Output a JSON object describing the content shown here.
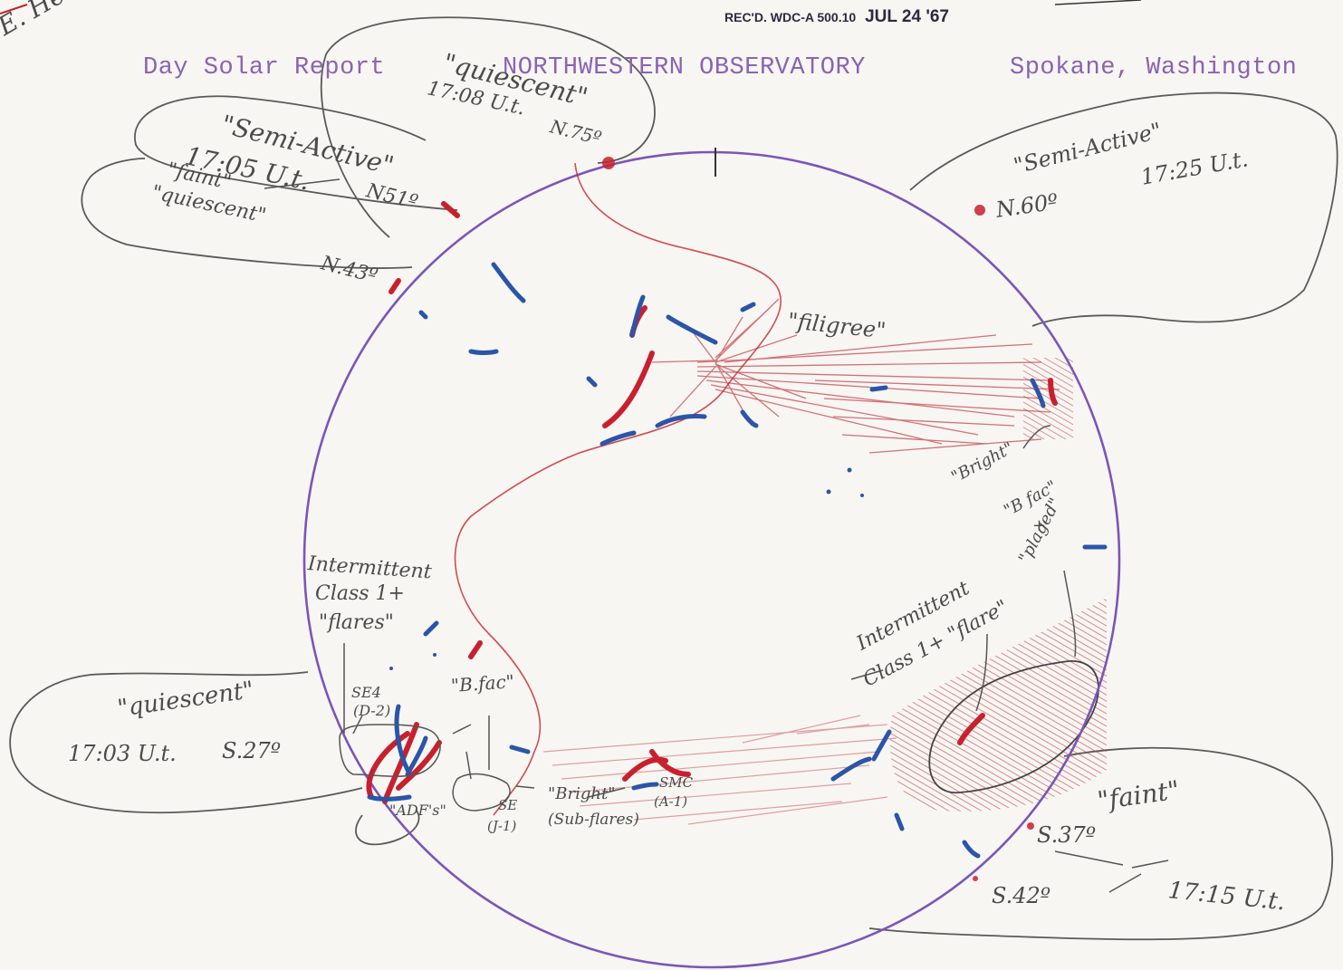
{
  "header": {
    "stamp_prefix": "REC'D. WDC-A 500.10",
    "stamp_date": "JUL 24 '67",
    "left": "Day Solar Report",
    "center": "NORTHWESTERN OBSERVATORY",
    "right": "Spokane, Washington",
    "corner_note": "E. Hemisp"
  },
  "annotations": {
    "quiescent_top": "\"quiescent\"",
    "time_1708": "17:08 U.t.",
    "lat_n75": "N.75º",
    "semi_active_left": "\"Semi-Active\"",
    "time_1705": "17:05 U.t.",
    "lat_n51": "N51º",
    "faint_left": "\"faint\"",
    "quiescent_left": "\"quiescent\"",
    "lat_n43": "N.43º",
    "semi_active_right": "\"Semi-Active\"",
    "lat_n60": "N.60º",
    "time_1725": "17:25 U.t.",
    "filigree": "\"filigree\"",
    "bright_upper": "\"Bright\"",
    "b_fac_right": "\"B fac\"",
    "plus": "+",
    "plaged": "\"plaged\"",
    "intermittent_left": "Intermittent",
    "class_left": "Class 1+",
    "flares_left": "\"flares\"",
    "intermittent_right": "Intermittent",
    "class_flare_right": "Class 1+ \"flare\"",
    "quiescent_lower": "\"quiescent\"",
    "time_1703": "17:03 U.t.",
    "lat_s27": "S.27º",
    "se4": "SE4",
    "d2": "(D-2)",
    "b_fac_lower": "\"B.fac\"",
    "adf": "\"ADF's\"",
    "se": "SE",
    "j1": "(J-1)",
    "bright_lower": "\"Bright\"",
    "sub_flares": "(Sub-flares)",
    "smc": "SMC",
    "a1": "(A-1)",
    "faint_right": "\"faint\"",
    "lat_s37": "S.37º",
    "lat_s42": "S.42º",
    "time_1715": "17:15 U.t."
  },
  "colors": {
    "disk_outline": "#7a56b8",
    "filament_red": "#c8202e",
    "filament_blue": "#2a55a8",
    "pencil": "#555555",
    "typed": "#8a63b3"
  }
}
